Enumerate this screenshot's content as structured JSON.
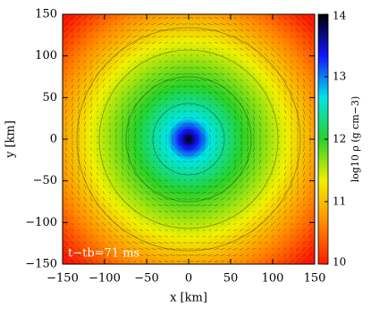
{
  "chart_data": {
    "type": "heatmap",
    "xlabel": "x [km]",
    "ylabel": "y [km]",
    "xlim": [
      -150,
      150
    ],
    "ylim": [
      -150,
      150
    ],
    "xticks": [
      {
        "value": -150,
        "label": "−150"
      },
      {
        "value": -100,
        "label": "−100"
      },
      {
        "value": -50,
        "label": "−50"
      },
      0,
      50,
      100,
      150
    ],
    "yticks": [
      {
        "value": -150,
        "label": "−150"
      },
      {
        "value": -100,
        "label": "−100"
      },
      {
        "value": -50,
        "label": "−50"
      },
      0,
      50,
      100,
      150
    ],
    "colorbar_label": "log10 ρ (g cm−3)",
    "clim": [
      10,
      14
    ],
    "cticks": [
      10,
      11,
      12,
      13,
      14
    ],
    "colormap": [
      "#ff1a00",
      "#ff8c00",
      "#f0f000",
      "#28d228",
      "#00e6e6",
      "#1414ff",
      "#000000"
    ],
    "annotation": "t−tb=71 ms"
  }
}
